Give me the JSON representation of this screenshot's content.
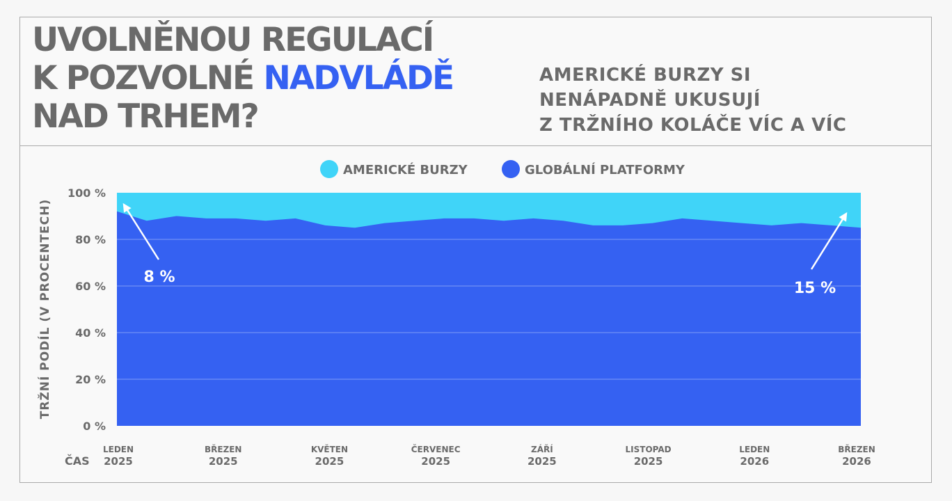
{
  "header": {
    "title_line1": "UVOLNĚNOU REGULACÍ",
    "title_line2_prefix": "K POZVOLNÉ ",
    "title_line2_accent": "NADVLÁDĚ",
    "title_line3": "NAD TRHEM?",
    "subtitle_line1": "AMERICKÉ BURZY SI",
    "subtitle_line2": "NENÁPADNĚ UKUSUJÍ",
    "subtitle_line3": "Z TRŽNÍHO KOLÁČE VÍC A VÍC"
  },
  "colors": {
    "accent": "#3561f2",
    "american": "#40d4f8",
    "global": "#3561f2",
    "text": "#6a6a6a"
  },
  "chart_data": {
    "type": "area",
    "stacked": true,
    "ylabel": "TRŽNÍ PODÍL (V PROCENTECH)",
    "xlabel": "ČAS",
    "ylim": [
      0,
      100
    ],
    "yticks": [
      "0 %",
      "20 %",
      "40 %",
      "60 %",
      "80 %",
      "100 %"
    ],
    "xticks": [
      {
        "month": "LEDEN",
        "year": "2025"
      },
      {
        "month": "BŘEZEN",
        "year": "2025"
      },
      {
        "month": "KVĚTEN",
        "year": "2025"
      },
      {
        "month": "ČERVENEC",
        "year": "2025"
      },
      {
        "month": "ZÁŘÍ",
        "year": "2025"
      },
      {
        "month": "LISTOPAD",
        "year": "2025"
      },
      {
        "month": "LEDEN",
        "year": "2026"
      },
      {
        "month": "BŘEZEN",
        "year": "2026"
      }
    ],
    "legend_position": "top-center",
    "grid": true,
    "series": [
      {
        "name": "AMERICKÉ BURZY",
        "values": [
          8,
          12,
          10,
          11,
          11,
          12,
          11,
          14,
          15,
          13,
          12,
          11,
          11,
          12,
          11,
          12,
          14,
          14,
          13,
          11,
          12,
          13,
          14,
          13,
          14,
          15
        ]
      },
      {
        "name": "GLOBÁLNÍ PLATFORMY",
        "values": [
          92,
          88,
          90,
          89,
          89,
          88,
          89,
          86,
          85,
          87,
          88,
          89,
          89,
          88,
          89,
          88,
          86,
          86,
          87,
          89,
          88,
          87,
          86,
          87,
          86,
          85
        ]
      }
    ],
    "annotations": [
      {
        "text": "8 %",
        "series": "AMERICKÉ BURZY",
        "point": "start"
      },
      {
        "text": "15 %",
        "series": "AMERICKÉ BURZY",
        "point": "end"
      }
    ]
  }
}
